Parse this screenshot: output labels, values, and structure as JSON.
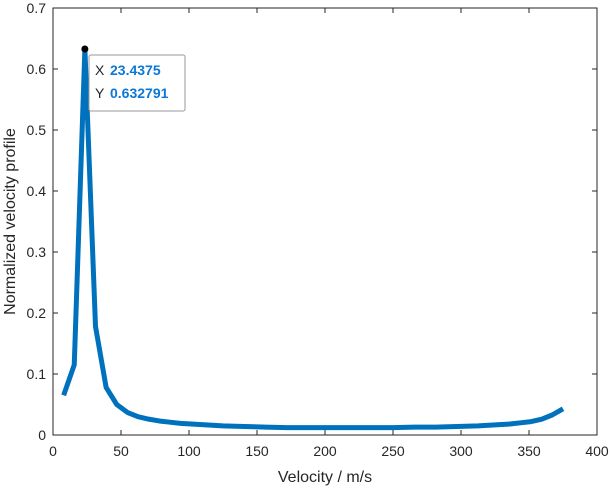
{
  "chart_data": {
    "type": "line",
    "xlabel": "Velocity / m/s",
    "ylabel": "Normalized velocity profile",
    "xlim": [
      0,
      400
    ],
    "ylim": [
      0,
      0.7
    ],
    "xticks": [
      0,
      50,
      100,
      150,
      200,
      250,
      300,
      350,
      400
    ],
    "yticks": [
      0,
      0.1,
      0.2,
      0.3,
      0.4,
      0.5,
      0.6,
      0.7
    ],
    "grid": false,
    "line_color": "#0072BD",
    "series": [
      {
        "x": [
          7.8125,
          15.625,
          23.4375,
          31.25,
          39.0625,
          46.875,
          54.6875,
          62.5,
          70.3125,
          78.125,
          85.9375,
          93.75,
          101.5625,
          109.375,
          117.1875,
          125,
          140.625,
          156.25,
          171.875,
          187.5,
          203.125,
          218.75,
          234.375,
          250,
          265.625,
          281.25,
          296.875,
          312.5,
          328.125,
          335.9375,
          343.75,
          351.5625,
          359.375,
          367.1875,
          375
        ],
        "y": [
          0.065,
          0.115,
          0.632791,
          0.178,
          0.078,
          0.05,
          0.037,
          0.03,
          0.026,
          0.023,
          0.021,
          0.019,
          0.018,
          0.017,
          0.016,
          0.015,
          0.014,
          0.013,
          0.012,
          0.012,
          0.012,
          0.012,
          0.012,
          0.012,
          0.013,
          0.013,
          0.014,
          0.015,
          0.017,
          0.018,
          0.02,
          0.022,
          0.026,
          0.033,
          0.043
        ]
      }
    ],
    "datatip": {
      "x_key": "X",
      "x_value": "23.4375",
      "y_key": "Y",
      "y_value": "0.632791",
      "point": [
        23.4375,
        0.632791
      ]
    }
  }
}
